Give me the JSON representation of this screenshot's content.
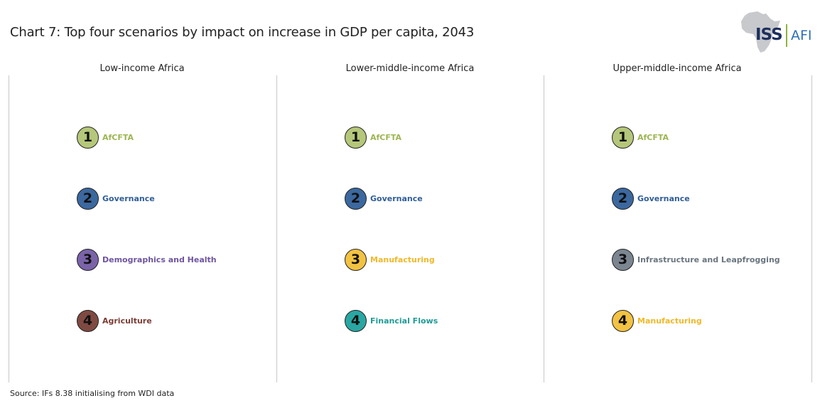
{
  "title": "Chart 7: Top four scenarios by impact on increase in GDP per capita, 2043",
  "logo": {
    "left_text": "ISS",
    "right_text": "AFI",
    "icon": "africa-map-icon"
  },
  "source": "Source: IFs 8.38 initialising from WDI data",
  "colors": {
    "AfCFTA": "#b5c77a",
    "Governance": "#3b689f",
    "Demographics and Health": "#7a63a8",
    "Agriculture": "#7f4a42",
    "Manufacturing": "#f2c242",
    "Financial Flows": "#29a7a3",
    "Infrastructure and Leapfrogging": "#7b8691"
  },
  "label_colors": {
    "AfCFTA": "#9db552",
    "Governance": "#2f5d96",
    "Demographics and Health": "#6e54a0",
    "Agriculture": "#7a3d35",
    "Manufacturing": "#f0b92a",
    "Financial Flows": "#1f9c98",
    "Infrastructure and Leapfrogging": "#6a7580"
  },
  "chart_data": {
    "type": "table",
    "title": "Chart 7: Top four scenarios by impact on increase in GDP per capita, 2043",
    "panels": [
      {
        "name": "Low-income Africa",
        "ranking": [
          {
            "rank": "1",
            "scenario": "AfCFTA"
          },
          {
            "rank": "2",
            "scenario": "Governance"
          },
          {
            "rank": "3",
            "scenario": "Demographics and Health"
          },
          {
            "rank": "4",
            "scenario": "Agriculture"
          }
        ]
      },
      {
        "name": "Lower-middle-income Africa",
        "ranking": [
          {
            "rank": "1",
            "scenario": "AfCFTA"
          },
          {
            "rank": "2",
            "scenario": "Governance"
          },
          {
            "rank": "3",
            "scenario": "Manufacturing"
          },
          {
            "rank": "4",
            "scenario": "Financial Flows"
          }
        ]
      },
      {
        "name": "Upper-middle-income Africa",
        "ranking": [
          {
            "rank": "1",
            "scenario": "AfCFTA"
          },
          {
            "rank": "2",
            "scenario": "Governance"
          },
          {
            "rank": "3",
            "scenario": "Infrastructure and Leapfrogging"
          },
          {
            "rank": "4",
            "scenario": "Manufacturing"
          }
        ]
      }
    ],
    "source": "Source: IFs 8.38 initialising from WDI data"
  }
}
